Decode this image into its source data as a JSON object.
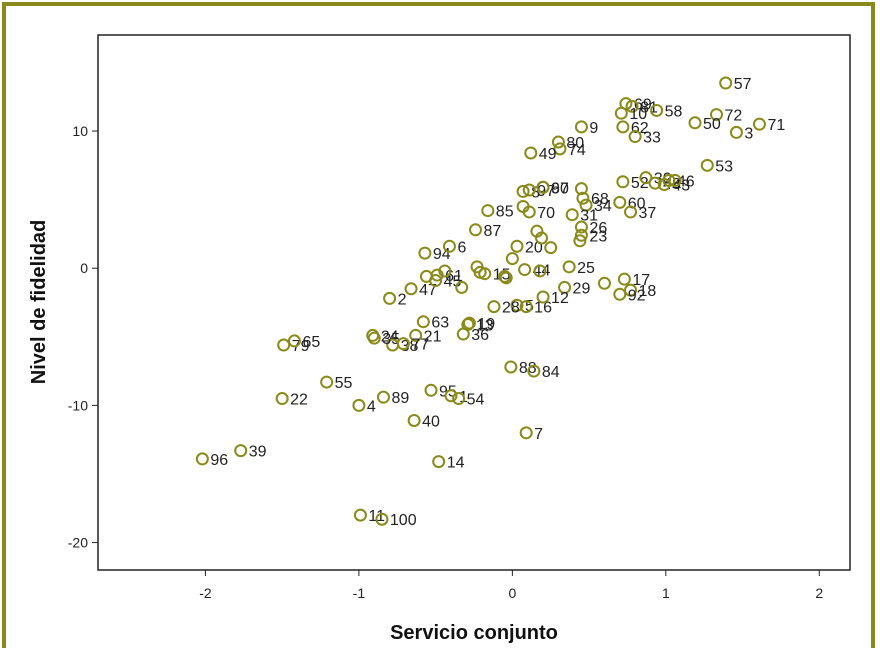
{
  "chart_data": {
    "type": "scatter",
    "xlabel": "Servicio conjunto",
    "ylabel": "Nivel de fidelidad",
    "xlim": [
      -2.7,
      2.2
    ],
    "ylim": [
      -22,
      17
    ],
    "xticks": [
      -2,
      -1,
      0,
      1,
      2
    ],
    "yticks": [
      -20,
      -10,
      0,
      10
    ],
    "marker_color": "#8a8a1a",
    "grid": false,
    "points": [
      {
        "label": "57",
        "x": 1.39,
        "y": 13.5
      },
      {
        "label": "69",
        "x": 0.74,
        "y": 12.0
      },
      {
        "label": "81",
        "x": 0.78,
        "y": 11.8
      },
      {
        "label": "10",
        "x": 0.71,
        "y": 11.3
      },
      {
        "label": "72",
        "x": 1.33,
        "y": 11.2
      },
      {
        "label": "58",
        "x": 0.94,
        "y": 11.5
      },
      {
        "label": "3",
        "x": 1.46,
        "y": 9.9
      },
      {
        "label": "50",
        "x": 1.19,
        "y": 10.6
      },
      {
        "label": "71",
        "x": 1.61,
        "y": 10.5
      },
      {
        "label": "9",
        "x": 0.45,
        "y": 10.3
      },
      {
        "label": "62",
        "x": 0.72,
        "y": 10.3
      },
      {
        "label": "33",
        "x": 0.8,
        "y": 9.6
      },
      {
        "label": "80",
        "x": 0.3,
        "y": 9.2
      },
      {
        "label": "74",
        "x": 0.31,
        "y": 8.7
      },
      {
        "label": "49",
        "x": 0.12,
        "y": 8.4
      },
      {
        "label": "52",
        "x": 0.72,
        "y": 6.3
      },
      {
        "label": "30",
        "x": 0.87,
        "y": 6.6
      },
      {
        "label": "48",
        "x": 0.93,
        "y": 6.2
      },
      {
        "label": "46",
        "x": 1.02,
        "y": 6.4
      },
      {
        "label": "53",
        "x": 1.27,
        "y": 7.5
      },
      {
        "label": "8",
        "x": 0.07,
        "y": 5.6
      },
      {
        "label": "97",
        "x": 0.11,
        "y": 5.7
      },
      {
        "label": "67",
        "x": 0.2,
        "y": 5.9
      },
      {
        "label": "90",
        "x": 0.2,
        "y": 5.9
      },
      {
        "label": "68",
        "x": 0.46,
        "y": 5.1
      },
      {
        "label": "34",
        "x": 0.48,
        "y": 4.6
      },
      {
        "label": "60",
        "x": 0.7,
        "y": 4.8
      },
      {
        "label": "37",
        "x": 0.77,
        "y": 4.1
      },
      {
        "label": "43",
        "x": 0.99,
        "y": 6.1
      },
      {
        "label": "85",
        "x": -0.16,
        "y": 4.2
      },
      {
        "label": "70",
        "x": 0.11,
        "y": 4.1
      },
      {
        "label": "31",
        "x": 0.39,
        "y": 3.9
      },
      {
        "label": "26",
        "x": 0.45,
        "y": 3.0
      },
      {
        "label": "87",
        "x": -0.24,
        "y": 2.8
      },
      {
        "label": "23",
        "x": 0.45,
        "y": 2.4
      },
      {
        "label": "94",
        "x": -0.57,
        "y": 1.1
      },
      {
        "label": "6",
        "x": -0.41,
        "y": 1.6
      },
      {
        "label": "20",
        "x": 0.03,
        "y": 1.6
      },
      {
        "label": "61",
        "x": -0.49,
        "y": -0.5
      },
      {
        "label": "15",
        "x": -0.18,
        "y": -0.4
      },
      {
        "label": "47",
        "x": -0.66,
        "y": -1.5
      },
      {
        "label": "45",
        "x": -0.5,
        "y": -0.9
      },
      {
        "label": "44",
        "x": 0.08,
        "y": -0.1
      },
      {
        "label": "25",
        "x": 0.37,
        "y": 0.1
      },
      {
        "label": "29",
        "x": 0.34,
        "y": -1.4
      },
      {
        "label": "17",
        "x": 0.73,
        "y": -0.8
      },
      {
        "label": "18",
        "x": 0.77,
        "y": -1.6
      },
      {
        "label": "92",
        "x": 0.7,
        "y": -1.9
      },
      {
        "label": "5",
        "x": 0.03,
        "y": -2.7
      },
      {
        "label": "16",
        "x": 0.09,
        "y": -2.8
      },
      {
        "label": "12",
        "x": 0.2,
        "y": -2.1
      },
      {
        "label": "28",
        "x": -0.12,
        "y": -2.8
      },
      {
        "label": "2",
        "x": -0.8,
        "y": -2.2
      },
      {
        "label": "63",
        "x": -0.58,
        "y": -3.9
      },
      {
        "label": "13",
        "x": -0.29,
        "y": -4.1
      },
      {
        "label": "19",
        "x": -0.28,
        "y": -4.0
      },
      {
        "label": "24",
        "x": -0.91,
        "y": -4.9
      },
      {
        "label": "38",
        "x": -0.78,
        "y": -5.6
      },
      {
        "label": "21",
        "x": -0.63,
        "y": -4.9
      },
      {
        "label": "36",
        "x": -0.32,
        "y": -4.8
      },
      {
        "label": "79",
        "x": -1.49,
        "y": -5.6
      },
      {
        "label": "65",
        "x": -1.42,
        "y": -5.3
      },
      {
        "label": "35",
        "x": -0.9,
        "y": -5.1
      },
      {
        "label": "77",
        "x": -0.71,
        "y": -5.5
      },
      {
        "label": "88",
        "x": -0.01,
        "y": -7.2
      },
      {
        "label": "84",
        "x": 0.14,
        "y": -7.5
      },
      {
        "label": "55",
        "x": -1.21,
        "y": -8.3
      },
      {
        "label": "95",
        "x": -0.53,
        "y": -8.9
      },
      {
        "label": "1",
        "x": -0.4,
        "y": -9.3
      },
      {
        "label": "89",
        "x": -0.84,
        "y": -9.4
      },
      {
        "label": "54",
        "x": -0.35,
        "y": -9.5
      },
      {
        "label": "22",
        "x": -1.5,
        "y": -9.5
      },
      {
        "label": "4",
        "x": -1.0,
        "y": -10.0
      },
      {
        "label": "40",
        "x": -0.64,
        "y": -11.1
      },
      {
        "label": "7",
        "x": 0.09,
        "y": -12.0
      },
      {
        "label": "96",
        "x": -2.02,
        "y": -13.9
      },
      {
        "label": "39",
        "x": -1.77,
        "y": -13.3
      },
      {
        "label": "14",
        "x": -0.48,
        "y": -14.1
      },
      {
        "label": "11",
        "x": -0.99,
        "y": -18.0
      },
      {
        "label": "100",
        "x": -0.85,
        "y": -18.3
      },
      {
        "label": "",
        "x": 1.06,
        "y": 6.4
      },
      {
        "label": "",
        "x": -0.05,
        "y": -0.6
      },
      {
        "label": "",
        "x": -0.04,
        "y": -0.7
      },
      {
        "label": "",
        "x": -0.56,
        "y": -0.6
      },
      {
        "label": "",
        "x": -0.44,
        "y": -0.2
      },
      {
        "label": "",
        "x": -0.23,
        "y": 0.1
      },
      {
        "label": "",
        "x": 0.0,
        "y": 0.7
      },
      {
        "label": "",
        "x": 0.19,
        "y": 2.2
      },
      {
        "label": "",
        "x": 0.25,
        "y": 1.5
      },
      {
        "label": "",
        "x": 0.18,
        "y": -0.2
      },
      {
        "label": "",
        "x": 0.6,
        "y": -1.1
      },
      {
        "label": "",
        "x": -0.21,
        "y": -0.3
      },
      {
        "label": "",
        "x": -0.33,
        "y": -1.4
      },
      {
        "label": "",
        "x": 0.44,
        "y": 2.0
      },
      {
        "label": "",
        "x": 0.16,
        "y": 2.7
      },
      {
        "label": "",
        "x": 0.45,
        "y": 5.8
      },
      {
        "label": "",
        "x": 0.07,
        "y": 4.5
      }
    ]
  }
}
